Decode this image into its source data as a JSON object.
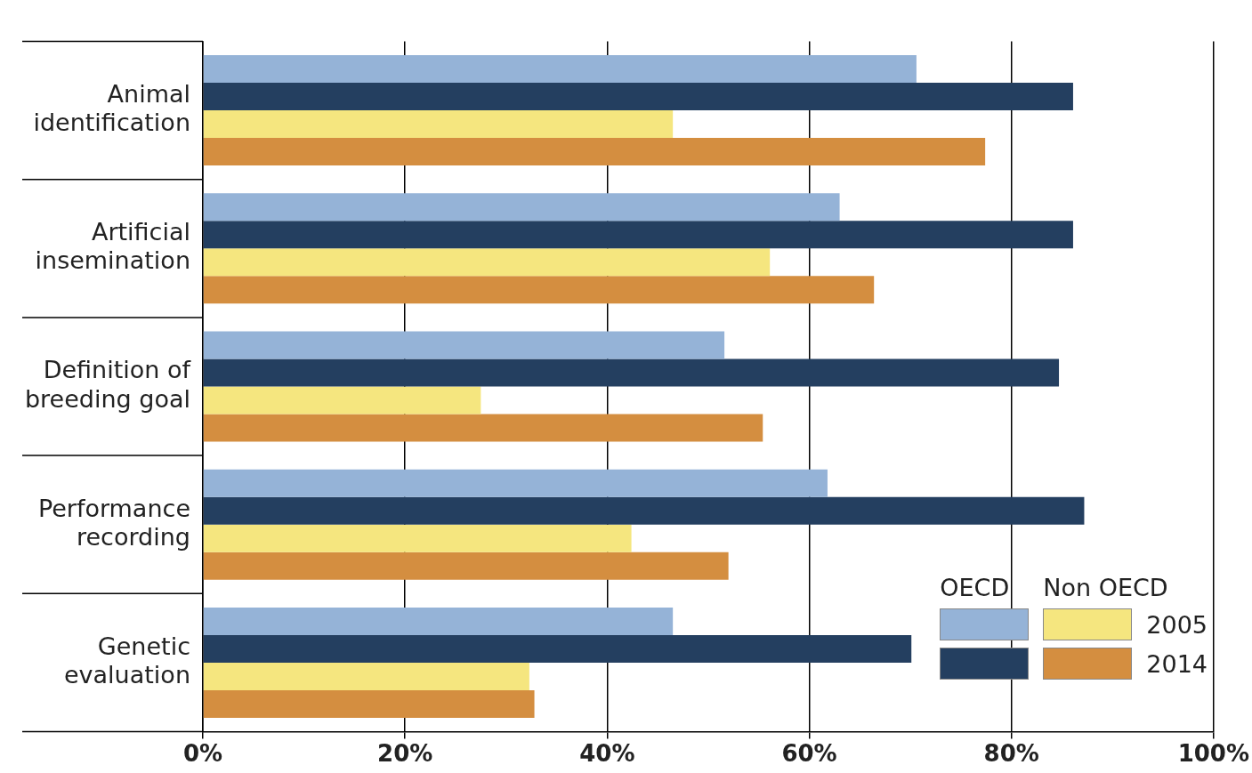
{
  "chart_data": {
    "type": "bar",
    "orientation": "horizontal",
    "categories": [
      "Animal identification",
      "Artificial insemination",
      "Definition of breeding goal",
      "Performance recording",
      "Genetic evaluation"
    ],
    "series": [
      {
        "color": "#95b3d7",
        "values": [
          70.6,
          63.0,
          51.6,
          61.8,
          46.5
        ]
      },
      {
        "color": "#243f60",
        "values": [
          86.1,
          86.1,
          84.7,
          87.2,
          70.1
        ]
      },
      {
        "name": "2005",
        "color": "#f5e67f",
        "values": [
          46.5,
          56.1,
          27.5,
          42.4,
          32.3
        ]
      },
      {
        "name": "2014",
        "color": "#d48e40",
        "values": [
          77.4,
          66.4,
          55.4,
          52.0,
          32.8
        ]
      }
    ],
    "annotations": [
      "OECD",
      "Non OECD"
    ],
    "xlim": [
      0,
      100
    ],
    "xticks": [
      {
        "value": 0,
        "label": "0%"
      },
      {
        "value": 20,
        "label": "20%"
      },
      {
        "value": 40,
        "label": "40%"
      },
      {
        "value": 60,
        "label": "60%"
      },
      {
        "value": 80,
        "label": "80%"
      },
      {
        "value": 100,
        "label": "100%"
      }
    ],
    "grid": "x",
    "legend": "bottom right"
  }
}
